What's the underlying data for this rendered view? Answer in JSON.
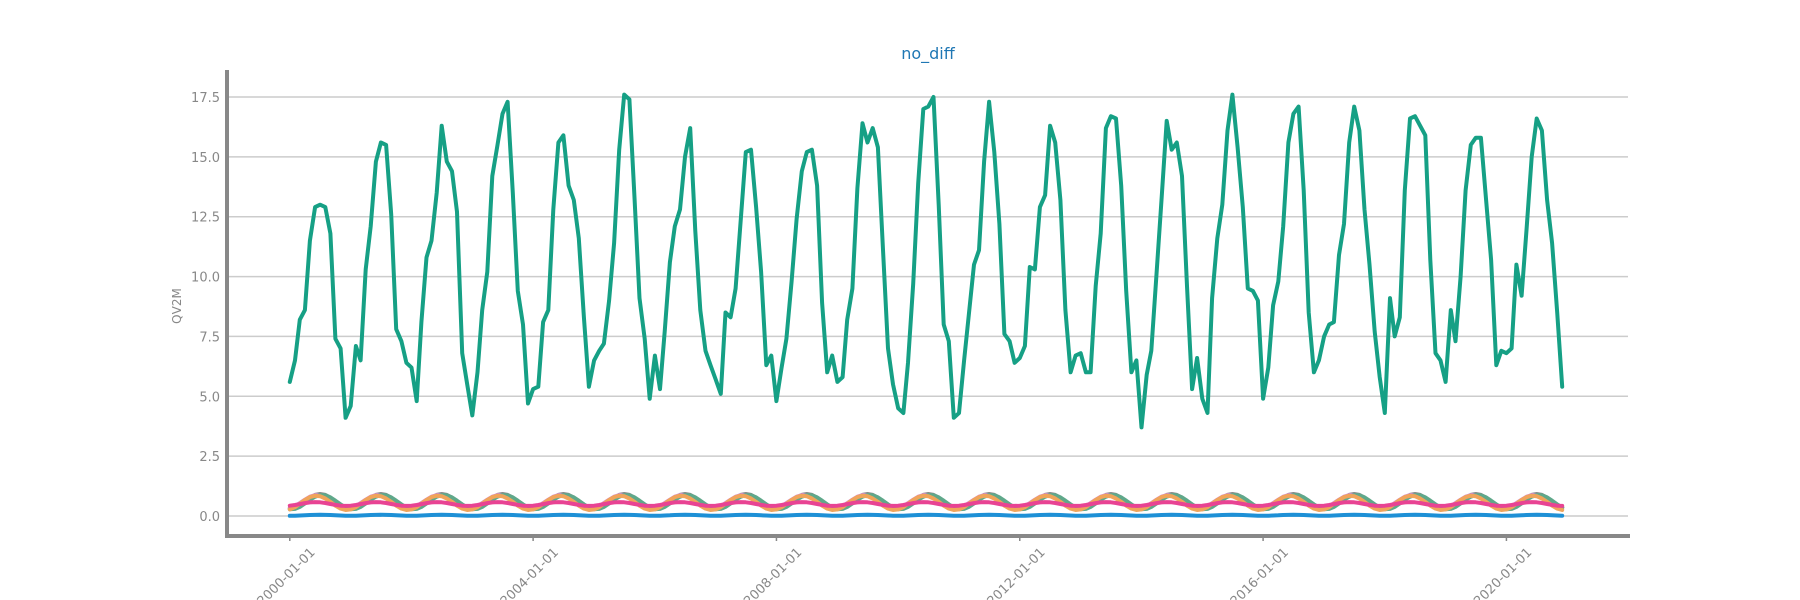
{
  "chart_data": {
    "type": "line",
    "title": "no_diff",
    "xlabel": "",
    "ylabel": "QV2M",
    "xlim": [
      "1999-01-01",
      "2021-12-31"
    ],
    "ylim": [
      -1.0,
      18.5
    ],
    "grid": true,
    "x_ticks": [
      "2000-01-01",
      "2004-01-01",
      "2008-01-01",
      "2012-01-01",
      "2016-01-01",
      "2020-01-01"
    ],
    "y_ticks": [
      0.0,
      2.5,
      5.0,
      7.5,
      10.0,
      12.5,
      15.0,
      17.5
    ],
    "y_tick_labels": [
      "0.0",
      "2.5",
      "5.0",
      "7.5",
      "10.0",
      "12.5",
      "15.0",
      "17.5"
    ],
    "x_start": "2000-01-01",
    "x_frequency": "monthly",
    "series": [
      {
        "color": "#16a085",
        "values": [
          5.6,
          6.5,
          8.2,
          8.6,
          11.5,
          12.9,
          13.0,
          12.9,
          11.8,
          7.4,
          7.0,
          4.1,
          4.6,
          7.1,
          6.5,
          10.3,
          12.1,
          14.8,
          15.6,
          15.5,
          12.6,
          7.8,
          7.3,
          6.4,
          6.2,
          4.8,
          8.1,
          10.8,
          11.5,
          13.5,
          16.3,
          14.8,
          14.4,
          12.7,
          6.8,
          5.5,
          4.2,
          6.0,
          8.6,
          10.2,
          14.2,
          15.5,
          16.8,
          17.3,
          13.5,
          9.4,
          8.0,
          4.7,
          5.3,
          5.4,
          8.1,
          8.6,
          12.8,
          15.6,
          15.9,
          13.8,
          13.2,
          11.6,
          8.3,
          5.4,
          6.5,
          6.9,
          7.2,
          9.0,
          11.4,
          15.3,
          17.6,
          17.4,
          13.3,
          9.1,
          7.4,
          4.9,
          6.7,
          5.3,
          7.7,
          10.6,
          12.1,
          12.8,
          15.0,
          16.2,
          11.9,
          8.6,
          6.9,
          6.3,
          5.7,
          5.1,
          8.5,
          8.3,
          9.5,
          12.4,
          15.2,
          15.3,
          12.9,
          10.2,
          6.3,
          6.7,
          4.8,
          6.2,
          7.4,
          9.8,
          12.4,
          14.4,
          15.2,
          15.3,
          13.8,
          8.9,
          6.0,
          6.7,
          5.6,
          5.8,
          8.2,
          9.5,
          13.7,
          16.4,
          15.6,
          16.2,
          15.4,
          11.2,
          7.0,
          5.5,
          4.5,
          4.3,
          6.4,
          9.7,
          13.9,
          17.0,
          17.1,
          17.5,
          13.0,
          8.0,
          7.3,
          4.1,
          4.3,
          6.5,
          8.4,
          10.5,
          11.1,
          14.8,
          17.3,
          15.2,
          12.2,
          7.6,
          7.3,
          6.4,
          6.6,
          7.1,
          10.4,
          10.3,
          12.9,
          13.4,
          16.3,
          15.6,
          13.2,
          8.6,
          6.0,
          6.7,
          6.8,
          6.0,
          6.0,
          9.6,
          11.8,
          16.2,
          16.7,
          16.6,
          13.8,
          9.4,
          6.0,
          6.5,
          3.7,
          5.9,
          6.9,
          10.1,
          13.2,
          16.5,
          15.3,
          15.6,
          14.2,
          9.6,
          5.3,
          6.6,
          4.9,
          4.3,
          9.1,
          11.6,
          13.0,
          16.1,
          17.6,
          15.4,
          12.9,
          9.5,
          9.4,
          9.0,
          4.9,
          6.2,
          8.8,
          9.8,
          12.1,
          15.6,
          16.8,
          17.1,
          13.6,
          8.5,
          6.0,
          6.5,
          7.5,
          8.0,
          8.1,
          10.9,
          12.2,
          15.6,
          17.1,
          16.1,
          12.8,
          10.5,
          7.7,
          5.8,
          4.3,
          9.1,
          7.5,
          8.3,
          13.6,
          16.6,
          16.7,
          16.3,
          15.9,
          10.7,
          6.8,
          6.5,
          5.6,
          8.6,
          7.3,
          10.0,
          13.6,
          15.5,
          15.8,
          15.8,
          13.2,
          10.7,
          6.3,
          6.9,
          6.8,
          7.0,
          10.5,
          9.2,
          12.0,
          15.0,
          16.6,
          16.1,
          13.2,
          11.4,
          8.5,
          5.4
        ]
      },
      {
        "color": "#8c8c8c",
        "pattern": "seasonal",
        "mean": 0.62,
        "amplitude": 0.3,
        "phase": 0.0
      },
      {
        "color": "#d88ad5",
        "pattern": "seasonal",
        "mean": 0.6,
        "amplitude": 0.28,
        "phase": 0.3
      },
      {
        "color": "#e84393",
        "pattern": "seasonal",
        "mean": 0.5,
        "amplitude": 0.08,
        "phase": 0.5
      },
      {
        "color": "#5fa88a",
        "pattern": "seasonal",
        "mean": 0.58,
        "amplitude": 0.3,
        "phase": -0.2
      },
      {
        "color": "#f0a45a",
        "pattern": "seasonal",
        "mean": 0.55,
        "amplitude": 0.3,
        "phase": 0.4
      },
      {
        "color": "#1e90d6",
        "pattern": "seasonal",
        "mean": 0.03,
        "amplitude": 0.02,
        "phase": 0.0
      }
    ]
  }
}
